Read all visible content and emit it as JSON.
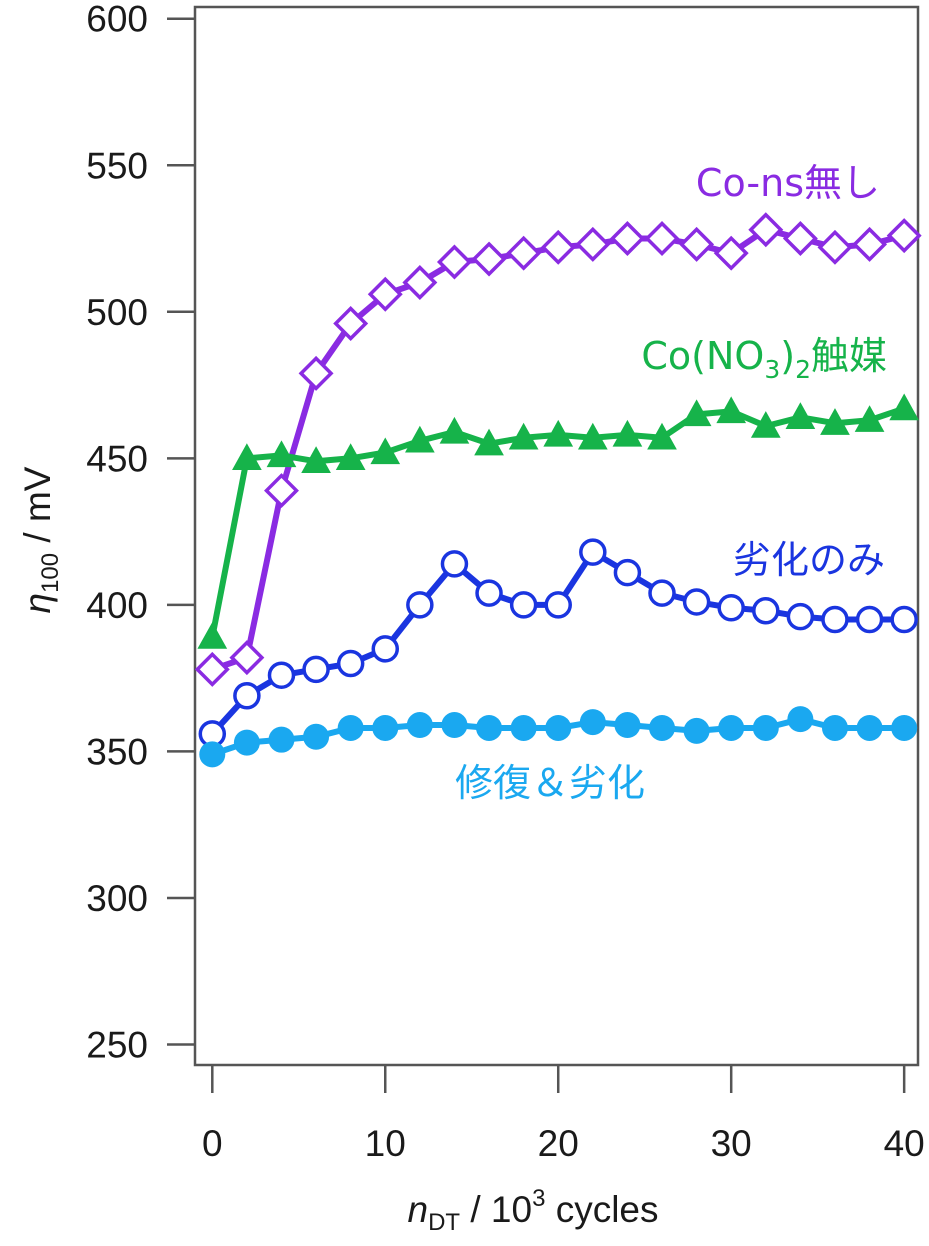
{
  "chart_data": {
    "type": "line",
    "ylabel": {
      "symbol": "η",
      "sub": "100",
      "unit": " / mV"
    },
    "xlabel": {
      "symbol": "n",
      "sub": "DT",
      "pre": " / 10",
      "sup": "3",
      "post": " cycles"
    },
    "xlim": [
      -1,
      40.8
    ],
    "ylim": [
      243,
      604
    ],
    "x_ticks": [
      0,
      10,
      20,
      30,
      40
    ],
    "y_ticks": [
      250,
      300,
      350,
      400,
      450,
      500,
      550,
      600
    ],
    "grid": false,
    "legend": "inline labels beside each series",
    "series": [
      {
        "name": "Co-ns無し",
        "color": "#8a2be2",
        "marker": "diamond-open",
        "label_position": "top-right",
        "x": [
          0,
          2,
          4,
          6,
          8,
          10,
          12,
          14,
          16,
          18,
          20,
          22,
          24,
          26,
          28,
          30,
          32,
          34,
          36,
          38,
          40
        ],
        "y": [
          378,
          382,
          439,
          479,
          496,
          506,
          510,
          517,
          518,
          520,
          522,
          523,
          525,
          525,
          523,
          520,
          528,
          525,
          522,
          523,
          526
        ]
      },
      {
        "name_parts": [
          "Co(NO",
          "3",
          ")",
          "2",
          "触媒"
        ],
        "color": "#16b34a",
        "marker": "triangle-filled",
        "label_position": "right",
        "x": [
          0,
          2,
          4,
          6,
          8,
          10,
          12,
          14,
          16,
          18,
          20,
          22,
          24,
          26,
          28,
          30,
          32,
          34,
          36,
          38,
          40
        ],
        "y": [
          389,
          450,
          451,
          449,
          450,
          452,
          456,
          459,
          455,
          457,
          458,
          457,
          458,
          457,
          465,
          466,
          461,
          464,
          462,
          463,
          467
        ]
      },
      {
        "name": "劣化のみ",
        "color": "#1a35e0",
        "marker": "circle-open",
        "label_position": "right",
        "x": [
          0,
          2,
          4,
          6,
          8,
          10,
          12,
          14,
          16,
          18,
          20,
          22,
          24,
          26,
          28,
          30,
          32,
          34,
          36,
          38,
          40
        ],
        "y": [
          356,
          369,
          376,
          378,
          380,
          385,
          400,
          414,
          404,
          400,
          400,
          418,
          411,
          404,
          401,
          399,
          398,
          396,
          395,
          395,
          395
        ]
      },
      {
        "name": "修復＆劣化",
        "color": "#1aa8f0",
        "marker": "circle-filled",
        "label_position": "bottom-center",
        "x": [
          0,
          2,
          4,
          6,
          8,
          10,
          12,
          14,
          16,
          18,
          20,
          22,
          24,
          26,
          28,
          30,
          32,
          34,
          36,
          38,
          40
        ],
        "y": [
          349,
          353,
          354,
          355,
          358,
          358,
          359,
          359,
          358,
          358,
          358,
          360,
          359,
          358,
          357,
          358,
          358,
          361,
          358,
          358,
          358
        ]
      }
    ]
  }
}
